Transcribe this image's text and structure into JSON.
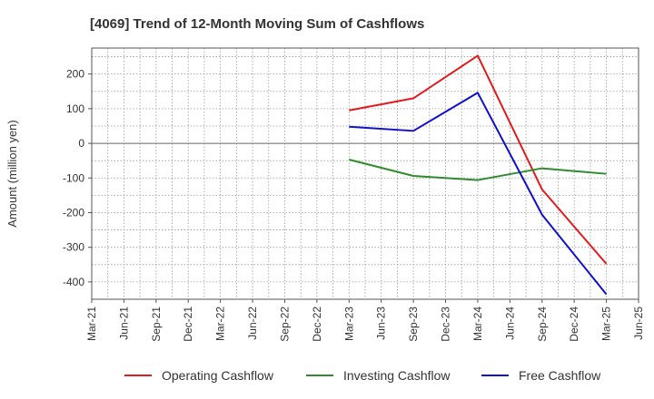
{
  "chart_data": {
    "type": "line",
    "title": "[4069]  Trend of 12-Month Moving Sum of Cashflows",
    "xlabel": "",
    "ylabel": "Amount (million yen)",
    "x_ticks": [
      "Mar-21",
      "Jun-21",
      "Sep-21",
      "Dec-21",
      "Mar-22",
      "Jun-22",
      "Sep-22",
      "Dec-22",
      "Mar-23",
      "Jun-23",
      "Sep-23",
      "Dec-23",
      "Mar-24",
      "Jun-24",
      "Sep-24",
      "Dec-24",
      "Mar-25",
      "Jun-25"
    ],
    "y_ticks": [
      200,
      100,
      0,
      -100,
      -200,
      -300,
      -400
    ],
    "ylim": [
      -450,
      275
    ],
    "grid": true,
    "legend_position": "bottom",
    "series": [
      {
        "name": "Operating Cashflow",
        "color": "#e41a1c",
        "x": [
          "Mar-23",
          "Sep-23",
          "Mar-24",
          "Sep-24",
          "Mar-25"
        ],
        "values": [
          95,
          130,
          253,
          -133,
          -348
        ]
      },
      {
        "name": "Investing Cashflow",
        "color": "#2e8b2e",
        "x": [
          "Mar-23",
          "Sep-23",
          "Mar-24",
          "Sep-24",
          "Mar-25"
        ],
        "values": [
          -47,
          -94,
          -106,
          -72,
          -88
        ]
      },
      {
        "name": "Free Cashflow",
        "color": "#1010cc",
        "x": [
          "Mar-23",
          "Sep-23",
          "Mar-24",
          "Sep-24",
          "Mar-25"
        ],
        "values": [
          48,
          36,
          146,
          -206,
          -436
        ]
      }
    ]
  }
}
